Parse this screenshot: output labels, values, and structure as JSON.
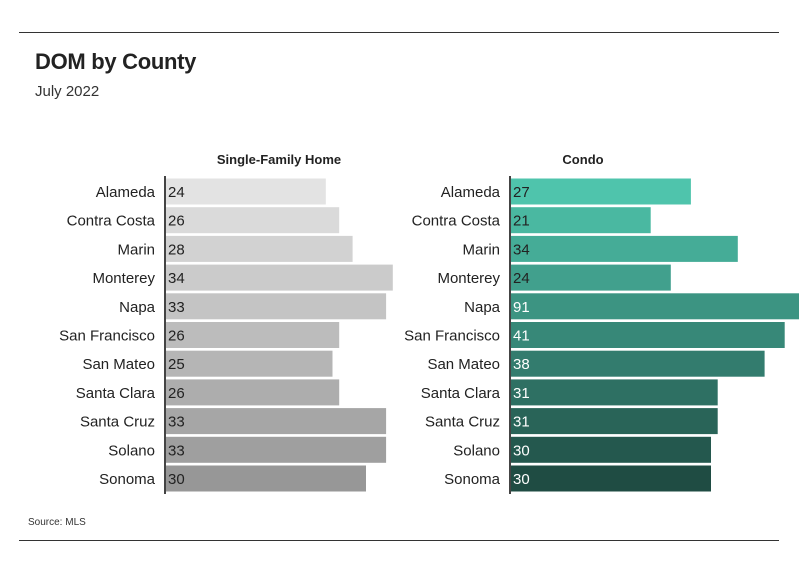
{
  "title": "DOM by County",
  "subtitle": "July 2022",
  "source": "Source: MLS",
  "chart_data": [
    {
      "type": "bar",
      "orientation": "horizontal",
      "panel_title": "Single-Family Home",
      "categories": [
        "Alameda",
        "Contra Costa",
        "Marin",
        "Monterey",
        "Napa",
        "San Francisco",
        "San Mateo",
        "Santa Clara",
        "Santa Cruz",
        "Solano",
        "Sonoma"
      ],
      "values": [
        24,
        26,
        28,
        34,
        33,
        26,
        25,
        26,
        33,
        33,
        30
      ],
      "colors": [
        "#e3e3e3",
        "#dadada",
        "#d2d2d2",
        "#cbcbcb",
        "#c4c4c4",
        "#bcbcbc",
        "#b5b5b5",
        "#adadad",
        "#a6a6a6",
        "#9f9f9f",
        "#979797"
      ],
      "value_label_color": "#222222"
    },
    {
      "type": "bar",
      "orientation": "horizontal",
      "panel_title": "Condo",
      "categories": [
        "Alameda",
        "Contra Costa",
        "Marin",
        "Monterey",
        "Napa",
        "San Francisco",
        "San Mateo",
        "Santa Clara",
        "Santa Cruz",
        "Solano",
        "Sonoma"
      ],
      "values": [
        27,
        21,
        34,
        24,
        91,
        41,
        38,
        31,
        31,
        30,
        30
      ],
      "colors": [
        "#4fc4ac",
        "#4ab8a1",
        "#45ac97",
        "#41a08d",
        "#3c9482",
        "#378878",
        "#337c6e",
        "#2e7063",
        "#296458",
        "#24584e",
        "#1f4c43"
      ],
      "value_label_colors": [
        "#222222",
        "#222222",
        "#222222",
        "#222222",
        "#ffffff",
        "#ffffff",
        "#ffffff",
        "#ffffff",
        "#ffffff",
        "#ffffff",
        "#ffffff"
      ]
    }
  ]
}
